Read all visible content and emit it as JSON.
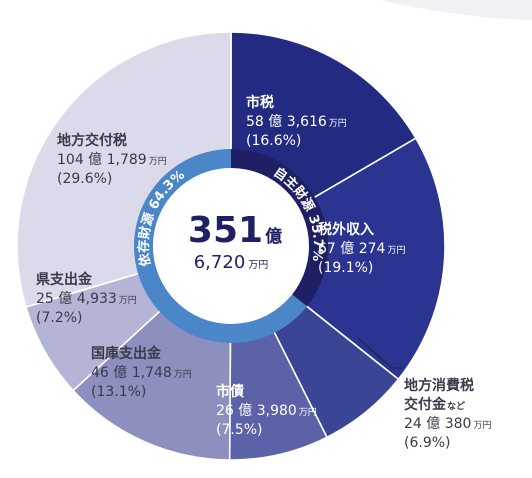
{
  "chart_data": {
    "type": "pie",
    "total": {
      "value": "351",
      "unit": "億",
      "sub_value": "6,720",
      "sub_unit": "万円"
    },
    "groups": [
      {
        "name": "自主財源",
        "percent_label": "35.7%",
        "color": "#1f1f66",
        "text_color": "#ffffff"
      },
      {
        "name": "依存財源",
        "percent_label": "64.3%",
        "color": "#4a86c8",
        "text_color": "#ffffff"
      }
    ],
    "slices": [
      {
        "name": "市税",
        "amount_oku": "58",
        "amount_man": "3,616",
        "unit": "万円",
        "percent": 16.6,
        "percent_label": "(16.6%)",
        "group": 0,
        "color": "#232a82",
        "text": "light"
      },
      {
        "name": "税外収入",
        "amount_oku": "67",
        "amount_man": "274",
        "unit": "万円",
        "percent": 19.1,
        "percent_label": "(19.1%)",
        "group": 0,
        "color": "#2b3491",
        "text": "light"
      },
      {
        "name": "地方消費税",
        "name2": "交付金",
        "note": "など",
        "amount_oku": "24",
        "amount_man": "380",
        "unit": "万円",
        "percent": 6.9,
        "percent_label": "(6.9%)",
        "group": 1,
        "color": "#3b4596",
        "text": "dark"
      },
      {
        "name": "市債",
        "amount_oku": "26",
        "amount_man": "3,980",
        "unit": "万円",
        "percent": 7.5,
        "percent_label": "(7.5%)",
        "group": 1,
        "color": "#5b62a8",
        "text": "light"
      },
      {
        "name": "国庫支出金",
        "amount_oku": "46",
        "amount_man": "1,748",
        "unit": "万円",
        "percent": 13.1,
        "percent_label": "(13.1%)",
        "group": 1,
        "color": "#8d8fbf",
        "text": "dark"
      },
      {
        "name": "県支出金",
        "amount_oku": "25",
        "amount_man": "4,933",
        "unit": "万円",
        "percent": 7.2,
        "percent_label": "(7.2%)",
        "group": 1,
        "color": "#b4b5d6",
        "text": "dark"
      },
      {
        "name": "地方交付税",
        "amount_oku": "104",
        "amount_man": "1,789",
        "unit": "万円",
        "percent": 29.6,
        "percent_label": "(29.6%)",
        "group": 1,
        "color": "#dadaea",
        "text": "dark"
      }
    ],
    "oku_unit": "億"
  }
}
